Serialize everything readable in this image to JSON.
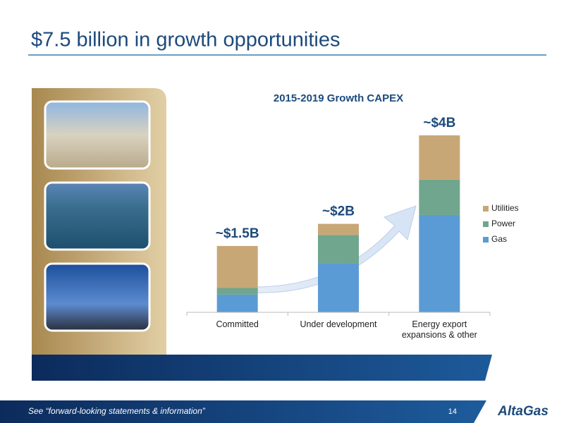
{
  "header": {
    "title": "$7.5 billion in growth opportunities"
  },
  "chart_data": {
    "type": "stacked_bar",
    "title": "2015-2019 Growth CAPEX",
    "categories": [
      "Committed",
      "Under development",
      "Energy export expansions & other"
    ],
    "series": [
      {
        "name": "Gas",
        "color": "#5b9bd5",
        "values": [
          0.4,
          1.1,
          2.2
        ]
      },
      {
        "name": "Power",
        "color": "#70a68d",
        "values": [
          0.15,
          0.65,
          0.8
        ]
      },
      {
        "name": "Utilities",
        "color": "#c8a777",
        "values": [
          0.95,
          0.25,
          1.0
        ]
      }
    ],
    "total_labels": [
      "~$1.5B",
      "~$2B",
      "~$4B"
    ],
    "legend": "right"
  },
  "footer": {
    "note": "See “forward-looking statements & information”",
    "page": "14",
    "logo": "AltaGas"
  }
}
